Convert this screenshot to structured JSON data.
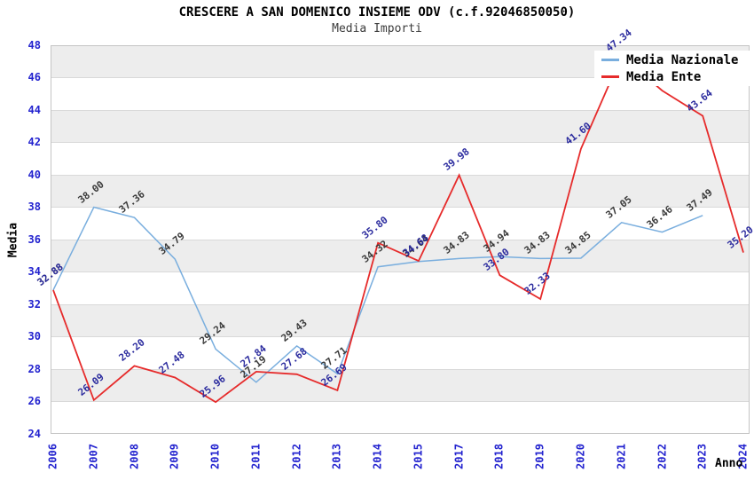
{
  "title": "CRESCERE A SAN DOMENICO INSIEME ODV (c.f.92046850050)",
  "subtitle": "Media Importi",
  "x_axis": {
    "label": "Anno",
    "tick_color": "#2323cf"
  },
  "y_axis": {
    "label": "Media",
    "tick_color": "#2323cf",
    "ticks": [
      24,
      26,
      28,
      30,
      32,
      34,
      36,
      38,
      40,
      42,
      44,
      46,
      48
    ]
  },
  "chart_data": {
    "type": "line",
    "title": "CRESCERE A SAN DOMENICO INSIEME ODV (c.f.92046850050)",
    "subtitle": "Media Importi",
    "xlabel": "Anno",
    "ylabel": "Media",
    "ylim": [
      24,
      48
    ],
    "grid": "horizontal-bands",
    "band_color": "#ededed",
    "legend_position": "top-right",
    "categories": [
      "2006",
      "2007",
      "2008",
      "2009",
      "2010",
      "2011",
      "2012",
      "2013",
      "2014",
      "2015",
      "2017",
      "2018",
      "2019",
      "2020",
      "2021",
      "2022",
      "2023",
      "2024"
    ],
    "series": [
      {
        "name": "Media Nazionale",
        "color": "#79aede",
        "label_color": "#3a3a3a",
        "values": [
          32.88,
          38.0,
          37.36,
          34.79,
          29.24,
          27.19,
          29.43,
          27.71,
          34.32,
          34.64,
          34.83,
          34.94,
          34.83,
          34.85,
          37.05,
          36.46,
          37.49,
          null
        ],
        "labels": [
          "32.88",
          "38.00",
          "37.36",
          "34.79",
          "29.24",
          "27.19",
          "29.43",
          "27.71",
          "34.32",
          "34.64",
          "34.83",
          "34.94",
          "34.83",
          "34.85",
          "37.05",
          "36.46",
          "37.49",
          null
        ]
      },
      {
        "name": "Media Ente",
        "color": "#e62b2b",
        "label_color": "#2b2b9e",
        "values": [
          32.88,
          26.09,
          28.2,
          27.48,
          25.96,
          27.84,
          27.68,
          26.69,
          35.8,
          34.68,
          39.98,
          33.8,
          32.33,
          41.6,
          47.34,
          45.2,
          43.64,
          35.2
        ],
        "labels": [
          "32.88",
          "26.09",
          "28.20",
          "27.48",
          "25.96",
          "27.84",
          "27.68",
          "26.69",
          "35.80",
          "34.68",
          "39.98",
          "33.80",
          "32.33",
          "41.60",
          "47.34",
          null,
          "43.64",
          "35.20"
        ]
      }
    ]
  }
}
